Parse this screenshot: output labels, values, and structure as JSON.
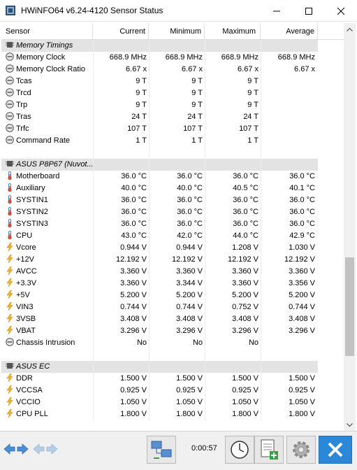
{
  "window": {
    "title": "HWiNFO64 v6.24-4120 Sensor Status"
  },
  "columns": {
    "sensor": "Sensor",
    "current": "Current",
    "minimum": "Minimum",
    "maximum": "Maximum",
    "average": "Average"
  },
  "rows": [
    {
      "type": "group",
      "icon": "chip-icon",
      "name": "Memory Timings"
    },
    {
      "type": "data",
      "icon": "gauge-icon",
      "name": "Memory Clock",
      "current": "668.9 MHz",
      "min": "668.9 MHz",
      "max": "668.9 MHz",
      "avg": "668.9 MHz"
    },
    {
      "type": "data",
      "icon": "gauge-icon",
      "name": "Memory Clock Ratio",
      "current": "6.67 x",
      "min": "6.67 x",
      "max": "6.67 x",
      "avg": "6.67 x"
    },
    {
      "type": "data",
      "icon": "gauge-icon",
      "name": "Tcas",
      "current": "9 T",
      "min": "9 T",
      "max": "9 T",
      "avg": ""
    },
    {
      "type": "data",
      "icon": "gauge-icon",
      "name": "Trcd",
      "current": "9 T",
      "min": "9 T",
      "max": "9 T",
      "avg": ""
    },
    {
      "type": "data",
      "icon": "gauge-icon",
      "name": "Trp",
      "current": "9 T",
      "min": "9 T",
      "max": "9 T",
      "avg": ""
    },
    {
      "type": "data",
      "icon": "gauge-icon",
      "name": "Tras",
      "current": "24 T",
      "min": "24 T",
      "max": "24 T",
      "avg": ""
    },
    {
      "type": "data",
      "icon": "gauge-icon",
      "name": "Trfc",
      "current": "107 T",
      "min": "107 T",
      "max": "107 T",
      "avg": ""
    },
    {
      "type": "data",
      "icon": "gauge-icon",
      "name": "Command Rate",
      "current": "1 T",
      "min": "1 T",
      "max": "1 T",
      "avg": ""
    },
    {
      "type": "blank"
    },
    {
      "type": "group",
      "icon": "chip-icon",
      "name": "ASUS P8P67 (Nuvot..."
    },
    {
      "type": "data",
      "icon": "thermometer-icon",
      "name": "Motherboard",
      "current": "36.0 °C",
      "min": "36.0 °C",
      "max": "36.0 °C",
      "avg": "36.0 °C"
    },
    {
      "type": "data",
      "icon": "thermometer-icon",
      "name": "Auxiliary",
      "current": "40.0 °C",
      "min": "40.0 °C",
      "max": "40.5 °C",
      "avg": "40.1 °C"
    },
    {
      "type": "data",
      "icon": "thermometer-icon",
      "name": "SYSTIN1",
      "current": "36.0 °C",
      "min": "36.0 °C",
      "max": "36.0 °C",
      "avg": "36.0 °C"
    },
    {
      "type": "data",
      "icon": "thermometer-icon",
      "name": "SYSTIN2",
      "current": "36.0 °C",
      "min": "36.0 °C",
      "max": "36.0 °C",
      "avg": "36.0 °C"
    },
    {
      "type": "data",
      "icon": "thermometer-icon",
      "name": "SYSTIN3",
      "current": "36.0 °C",
      "min": "36.0 °C",
      "max": "36.0 °C",
      "avg": "36.0 °C"
    },
    {
      "type": "data",
      "icon": "thermometer-icon",
      "name": "CPU",
      "current": "43.0 °C",
      "min": "42.0 °C",
      "max": "44.0 °C",
      "avg": "42.9 °C"
    },
    {
      "type": "data",
      "icon": "lightning-icon",
      "name": "Vcore",
      "current": "0.944 V",
      "min": "0.944 V",
      "max": "1.208 V",
      "avg": "1.030 V"
    },
    {
      "type": "data",
      "icon": "lightning-icon",
      "name": "+12V",
      "current": "12.192 V",
      "min": "12.192 V",
      "max": "12.192 V",
      "avg": "12.192 V"
    },
    {
      "type": "data",
      "icon": "lightning-icon",
      "name": "AVCC",
      "current": "3.360 V",
      "min": "3.360 V",
      "max": "3.360 V",
      "avg": "3.360 V"
    },
    {
      "type": "data",
      "icon": "lightning-icon",
      "name": "+3.3V",
      "current": "3.360 V",
      "min": "3.344 V",
      "max": "3.360 V",
      "avg": "3.356 V"
    },
    {
      "type": "data",
      "icon": "lightning-icon",
      "name": "+5V",
      "current": "5.200 V",
      "min": "5.200 V",
      "max": "5.200 V",
      "avg": "5.200 V"
    },
    {
      "type": "data",
      "icon": "lightning-icon",
      "name": "VIN3",
      "current": "0.744 V",
      "min": "0.744 V",
      "max": "0.752 V",
      "avg": "0.744 V"
    },
    {
      "type": "data",
      "icon": "lightning-icon",
      "name": "3VSB",
      "current": "3.408 V",
      "min": "3.408 V",
      "max": "3.408 V",
      "avg": "3.408 V"
    },
    {
      "type": "data",
      "icon": "lightning-icon",
      "name": "VBAT",
      "current": "3.296 V",
      "min": "3.296 V",
      "max": "3.296 V",
      "avg": "3.296 V"
    },
    {
      "type": "data",
      "icon": "gauge-icon",
      "name": "Chassis Intrusion",
      "current": "No",
      "min": "No",
      "max": "No",
      "avg": ""
    },
    {
      "type": "blank"
    },
    {
      "type": "group",
      "icon": "chip-icon",
      "name": "ASUS EC"
    },
    {
      "type": "data",
      "icon": "lightning-icon",
      "name": "DDR",
      "current": "1.500 V",
      "min": "1.500 V",
      "max": "1.500 V",
      "avg": "1.500 V"
    },
    {
      "type": "data",
      "icon": "lightning-icon",
      "name": "VCCSA",
      "current": "0.925 V",
      "min": "0.925 V",
      "max": "0.925 V",
      "avg": "0.925 V"
    },
    {
      "type": "data",
      "icon": "lightning-icon",
      "name": "VCCIO",
      "current": "1.050 V",
      "min": "1.050 V",
      "max": "1.050 V",
      "avg": "1.050 V"
    },
    {
      "type": "data",
      "icon": "lightning-icon",
      "name": "CPU PLL",
      "current": "1.800 V",
      "min": "1.800 V",
      "max": "1.800 V",
      "avg": "1.800 V"
    }
  ],
  "toolbar": {
    "timer": "0:00:57"
  },
  "colors": {
    "group_bg": "#e3e3e3",
    "accent": "#2b88d8",
    "lightning": "#e8a317",
    "thermometer": "#4a7fc1"
  },
  "scrollbar": {
    "position_fraction": 0.6
  }
}
